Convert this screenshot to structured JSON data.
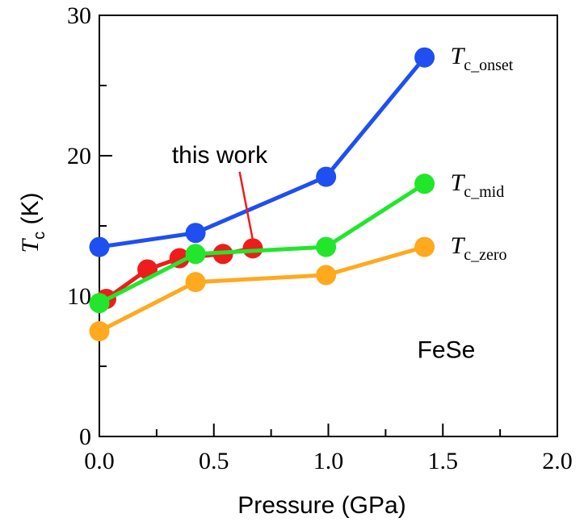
{
  "chart_data": {
    "type": "line",
    "xlabel": "Pressure (GPa)",
    "ylabel": {
      "main": "T",
      "sub": "c",
      "unit": " (K)"
    },
    "xlim": [
      0,
      2.0
    ],
    "ylim": [
      0,
      30
    ],
    "xticks": [
      0.0,
      0.5,
      1.0,
      1.5,
      2.0
    ],
    "xtick_labels": [
      "0.0",
      "0.5",
      "1.0",
      "1.5",
      "2.0"
    ],
    "yticks": [
      0,
      10,
      20,
      30
    ],
    "ytick_labels": [
      "0",
      "10",
      "20",
      "30"
    ],
    "grid": false,
    "series": [
      {
        "key": "this_work",
        "color": "#ee1c1c",
        "x": [
          0.03,
          0.21,
          0.35,
          0.54,
          0.67
        ],
        "y": [
          9.8,
          11.9,
          12.7,
          13.0,
          13.4
        ]
      },
      {
        "key": "onset",
        "name": {
          "main": "T",
          "sub": "c_onset"
        },
        "color": "#1f4ff0",
        "x": [
          0.0,
          0.42,
          0.99,
          1.42
        ],
        "y": [
          13.5,
          14.5,
          18.5,
          27.0
        ]
      },
      {
        "key": "mid",
        "name": {
          "main": "T",
          "sub": "c_mid"
        },
        "color": "#22e62c",
        "x": [
          0.0,
          0.42,
          0.99,
          1.42
        ],
        "y": [
          9.5,
          13.0,
          13.5,
          18.0
        ]
      },
      {
        "key": "zero",
        "name": {
          "main": "T",
          "sub": "c_zero"
        },
        "color": "#ffa91f",
        "x": [
          0.0,
          0.42,
          0.99,
          1.42
        ],
        "y": [
          7.5,
          11.0,
          11.5,
          13.5
        ]
      }
    ],
    "annotations": [
      {
        "key": "this_work",
        "text": "this work",
        "arrow_from": [
          0.63,
          19.2
        ],
        "arrow_to": [
          0.67,
          14.0
        ]
      },
      {
        "key": "material",
        "text": "FeSe",
        "at": [
          1.55,
          5.6
        ]
      }
    ]
  }
}
